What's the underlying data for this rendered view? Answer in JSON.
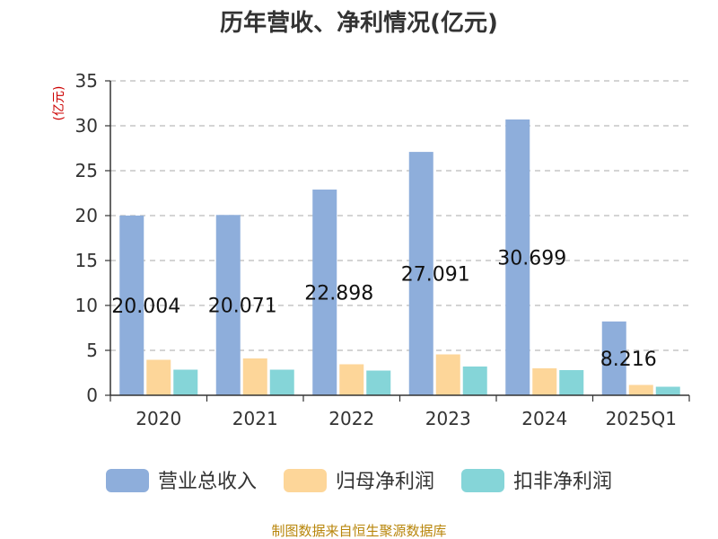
{
  "chart_data": {
    "type": "bar",
    "title": "历年营收、净利情况(亿元)",
    "ylabel": "(亿元)",
    "xlabel": "",
    "categories": [
      "2020",
      "2021",
      "2022",
      "2023",
      "2024",
      "2025Q1"
    ],
    "ylim": [
      0,
      35
    ],
    "yticks": [
      0,
      5,
      10,
      15,
      20,
      25,
      30,
      35
    ],
    "grid": true,
    "legend_position": "bottom",
    "series": [
      {
        "name": "营业总收入",
        "color": "#8eaedb",
        "values": [
          20.004,
          20.071,
          22.898,
          27.091,
          30.699,
          8.216
        ],
        "data_labels": [
          "20.004",
          "20.071",
          "22.898",
          "27.091",
          "30.699",
          "8.216"
        ]
      },
      {
        "name": "归母净利润",
        "color": "#fdd699",
        "values": [
          3.95,
          4.1,
          3.45,
          4.55,
          3.0,
          1.15
        ]
      },
      {
        "name": "扣非净利润",
        "color": "#85d5d8",
        "values": [
          2.85,
          2.85,
          2.75,
          3.2,
          2.8,
          0.95
        ]
      }
    ],
    "source": "制图数据来自恒生聚源数据库"
  }
}
